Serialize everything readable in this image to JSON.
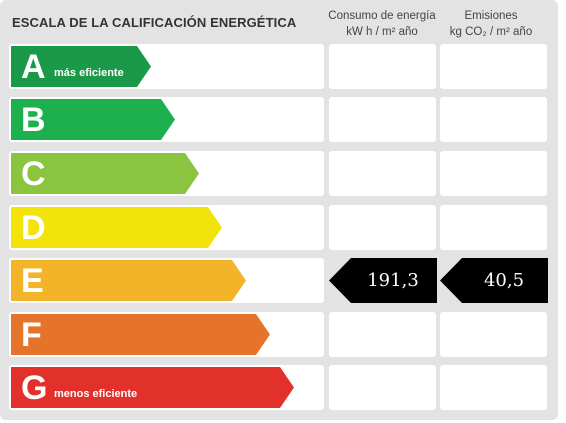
{
  "scale": {
    "title": "ESCALA DE LA CALIFICACIÓN ENERGÉTICA",
    "columns": [
      {
        "line1": "Consumo de energía",
        "line2": "kW h  / m² año"
      },
      {
        "line1": "Emisiones",
        "line2": "kg CO₂  / m² año"
      }
    ],
    "ratings": [
      {
        "letter": "A",
        "sublabel": "más eficiente",
        "color": "#1a9a48"
      },
      {
        "letter": "B",
        "sublabel": "",
        "color": "#1eb04f"
      },
      {
        "letter": "C",
        "sublabel": "",
        "color": "#8bc43f"
      },
      {
        "letter": "D",
        "sublabel": "",
        "color": "#f2e40b"
      },
      {
        "letter": "E",
        "sublabel": "",
        "color": "#f3b42a"
      },
      {
        "letter": "F",
        "sublabel": "",
        "color": "#e5742a"
      },
      {
        "letter": "G",
        "sublabel": "menos eficiente",
        "color": "#e2302b"
      }
    ],
    "current_rating": "E",
    "consumption_value": "191,3",
    "emissions_value": "40,5",
    "indicator_color": "#000000"
  }
}
